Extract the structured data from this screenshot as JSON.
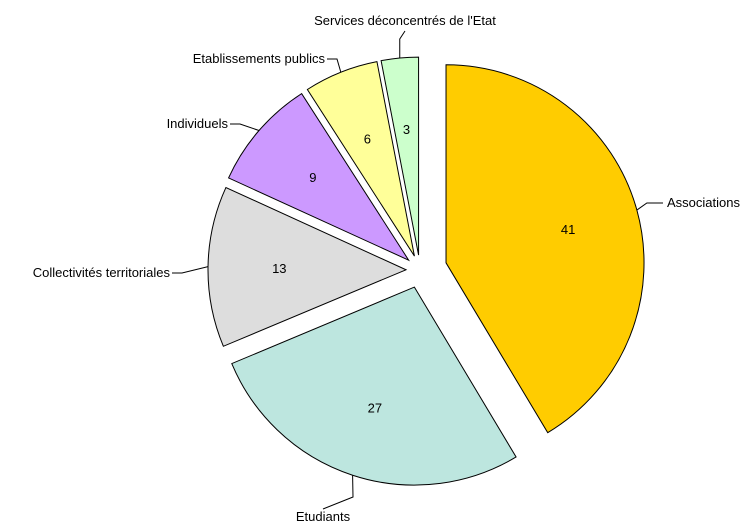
{
  "chart_data": {
    "type": "pie",
    "title": "",
    "exploded": true,
    "start": "12 o'clock, clockwise",
    "slices": [
      {
        "label": "Associations",
        "value": 41,
        "color": "#FFCC00"
      },
      {
        "label": "Etudiants",
        "value": 27,
        "color": "#BDE6DF"
      },
      {
        "label": "Collectivités territoriales",
        "value": 13,
        "color": "#DDDDDD"
      },
      {
        "label": "Individuels",
        "value": 9,
        "color": "#CC99FF"
      },
      {
        "label": "Etablissements publics",
        "value": 6,
        "color": "#FFFF99"
      },
      {
        "label": "Services déconcentrés de l'Etat",
        "value": 3,
        "color": "#CCFFCC"
      }
    ]
  }
}
